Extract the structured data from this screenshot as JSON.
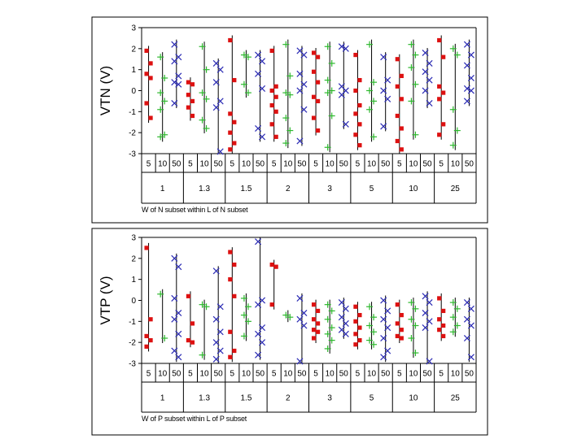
{
  "chart_data": [
    {
      "type": "scatter",
      "ylabel": "VTN (V)",
      "xlabel": "W of N subset within L of N subset",
      "ylim": [
        -3,
        3
      ],
      "yticks": [
        3,
        2,
        1,
        0,
        -1,
        -2,
        -3
      ],
      "grid": false,
      "groups": [
        "1",
        "1.3",
        "1.5",
        "2",
        "3",
        "5",
        "10",
        "25"
      ],
      "widths": [
        "5",
        "10",
        "50"
      ],
      "colors": {
        "5": "#dd1111",
        "10": "#2db82d",
        "50": "#2c2cb4"
      },
      "markers": {
        "5": "square",
        "10": "plus",
        "50": "x"
      },
      "points": [
        [
          [
            1.9,
            1.3,
            0.8,
            0.6,
            -0.6,
            -1.3
          ],
          [
            1.6,
            0.6,
            -0.1,
            -0.5,
            -0.9,
            -2.1,
            -2.2
          ],
          [
            2.2,
            1.6,
            1.4,
            0.7,
            0.4,
            0.3,
            -0.6
          ]
        ],
        [
          [
            0.4,
            0.3,
            -0.2,
            -0.5,
            -0.8,
            -1.2
          ],
          [
            2.1,
            1.0,
            -0.1,
            -0.4,
            -1.4,
            -1.8
          ],
          [
            1.3,
            1.0,
            0.4,
            -0.5,
            -0.8,
            -2.9
          ]
        ],
        [
          [
            2.4,
            0.5,
            -1.1,
            -1.5,
            -2.0,
            -2.5,
            -2.8
          ],
          [
            1.7,
            1.6,
            0.3,
            -0.1
          ],
          [
            1.7,
            1.4,
            0.8,
            0.1,
            -1.8,
            -2.2
          ]
        ],
        [
          [
            1.9,
            0.2,
            0.0,
            -0.3,
            -0.7,
            -1.0,
            -1.6,
            -2.2
          ],
          [
            2.2,
            0.7,
            -0.1,
            -0.2,
            -1.3,
            -1.9,
            -2.5
          ],
          [
            1.9,
            1.7,
            0.8,
            0.3,
            0.0,
            -0.9,
            -2.4
          ]
        ],
        [
          [
            1.8,
            1.6,
            0.9,
            0.4,
            -0.3,
            -0.5,
            -1.3,
            -1.9
          ],
          [
            2.1,
            1.3,
            0.5,
            0.0,
            -0.1,
            -1.2,
            -2.7
          ],
          [
            2.1,
            2.0,
            0.2,
            0.0,
            -0.2,
            -1.6
          ]
        ],
        [
          [
            1.7,
            0.5,
            0.0,
            -0.7,
            -1.1,
            -1.6,
            -2.1,
            -2.6
          ],
          [
            2.2,
            0.4,
            0.0,
            -0.5,
            -0.9,
            -2.2
          ],
          [
            1.6,
            0.5,
            0.0,
            -0.4,
            -1.7
          ]
        ],
        [
          [
            1.5,
            0.7,
            0.2,
            -0.4,
            -1.2,
            -1.8,
            -2.4,
            -2.8
          ],
          [
            2.2,
            1.7,
            1.1,
            0.3,
            -0.5,
            -2.1
          ],
          [
            1.8,
            1.3,
            0.9,
            0.5,
            0.0,
            -0.6
          ]
        ],
        [
          [
            2.4,
            1.6,
            0.2,
            -0.1,
            -0.4,
            -1.6,
            -2.1
          ],
          [
            2.0,
            1.7,
            -0.9,
            -1.9,
            -2.6
          ],
          [
            2.2,
            1.7,
            1.2,
            0.6,
            0.1,
            0.0,
            -0.5
          ]
        ]
      ]
    },
    {
      "type": "scatter",
      "ylabel": "VTP (V)",
      "xlabel": "W of P subset within L of P subset",
      "ylim": [
        -3,
        3
      ],
      "yticks": [
        3,
        2,
        1,
        0,
        -1,
        -2,
        -3
      ],
      "grid": false,
      "groups": [
        "1",
        "1.3",
        "1.5",
        "2",
        "3",
        "5",
        "10",
        "25"
      ],
      "widths": [
        "5",
        "10",
        "50"
      ],
      "colors": {
        "5": "#dd1111",
        "10": "#2db82d",
        "50": "#2c2cb4"
      },
      "markers": {
        "5": "square",
        "10": "plus",
        "50": "x"
      },
      "points": [
        [
          [
            2.5,
            -0.9,
            -1.7,
            -1.9,
            -2.2
          ],
          [
            0.3,
            -1.8
          ],
          [
            2.0,
            1.6,
            0.1,
            -0.6,
            -0.9,
            -1.6,
            -2.4,
            -2.7
          ]
        ],
        [
          [
            0.2,
            -1.1,
            -1.9,
            -2.0
          ],
          [
            -0.2,
            -0.3,
            -2.6
          ],
          [
            1.4,
            -0.3,
            -0.9,
            -1.5,
            -2.0,
            -2.4,
            -2.8
          ]
        ],
        [
          [
            2.3,
            1.7,
            1.0,
            0.2,
            -1.5,
            -2.4,
            -2.7
          ],
          [
            0.1,
            -0.3,
            -0.7,
            -1.0,
            -1.7
          ],
          [
            2.8,
            0.0,
            -0.2,
            -1.3,
            -1.6,
            -2.0,
            -2.6
          ]
        ],
        [
          [
            1.7,
            1.6,
            -0.2
          ],
          [
            -0.7,
            -0.8
          ],
          [
            0.1,
            -0.6,
            -0.9,
            -1.2,
            -2.9
          ]
        ],
        [
          [
            -0.2,
            -0.5,
            -0.9,
            -1.1,
            -1.4,
            -1.5,
            -1.8
          ],
          [
            -0.2,
            -0.5,
            -0.9,
            -1.3,
            -1.6,
            -1.9,
            -2.3
          ],
          [
            -0.1,
            -0.4,
            -0.8,
            -1.1,
            -1.4,
            -1.6
          ]
        ],
        [
          [
            -0.3,
            -0.7,
            -1.0,
            -1.3,
            -1.6,
            -1.9,
            -2.1
          ],
          [
            -0.3,
            -0.8,
            -1.2,
            -1.5,
            -1.9,
            -2.1
          ],
          [
            0.0,
            -0.5,
            -0.9,
            -1.3,
            -1.8,
            -2.4,
            -2.7
          ]
        ],
        [
          [
            -0.2,
            -0.7,
            -1.1,
            -1.4,
            -1.7,
            -1.8
          ],
          [
            -0.1,
            -0.4,
            -0.9,
            -1.2,
            -1.8,
            -2.5
          ],
          [
            0.2,
            -0.1,
            -0.6,
            -1.0,
            -1.3,
            -2.9
          ]
        ],
        [
          [
            0.1,
            -0.5,
            -0.9,
            -1.2,
            -1.4,
            -1.7
          ],
          [
            -0.1,
            -0.4,
            -0.8,
            -1.2,
            -1.5
          ],
          [
            -0.1,
            -0.4,
            -0.9,
            -1.2,
            -1.8,
            -2.7
          ]
        ]
      ]
    }
  ]
}
